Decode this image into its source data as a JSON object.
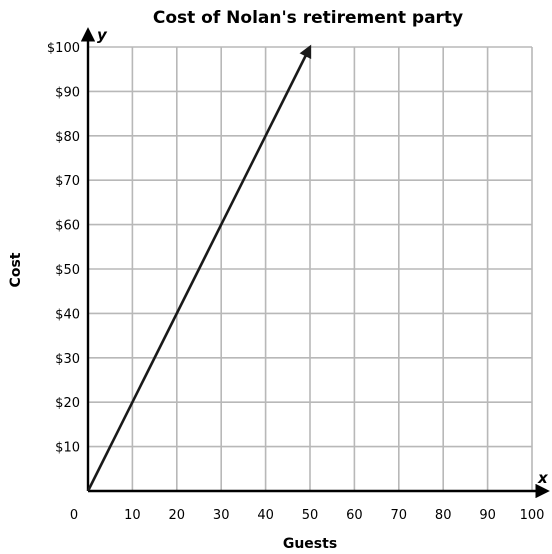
{
  "chart_data": {
    "type": "line",
    "title": "Cost of Nolan's retirement party",
    "xlabel": "Guests",
    "ylabel": "Cost",
    "x_axis_letter": "x",
    "y_axis_letter": "y",
    "xlim": [
      0,
      100
    ],
    "ylim": [
      0,
      100
    ],
    "x_ticks": [
      "0",
      "10",
      "20",
      "30",
      "40",
      "50",
      "60",
      "70",
      "80",
      "90",
      "100"
    ],
    "y_ticks": [
      "$10",
      "$20",
      "$30",
      "$40",
      "$50",
      "$60",
      "$70",
      "$80",
      "$90",
      "$100"
    ],
    "grid": true,
    "series": [
      {
        "x": [
          0,
          50
        ],
        "y": [
          0,
          100
        ],
        "arrow_end": true
      }
    ],
    "colors": {
      "line": "#1a1a1a",
      "grid": "#b8b8b8",
      "axis": "#000000"
    }
  }
}
